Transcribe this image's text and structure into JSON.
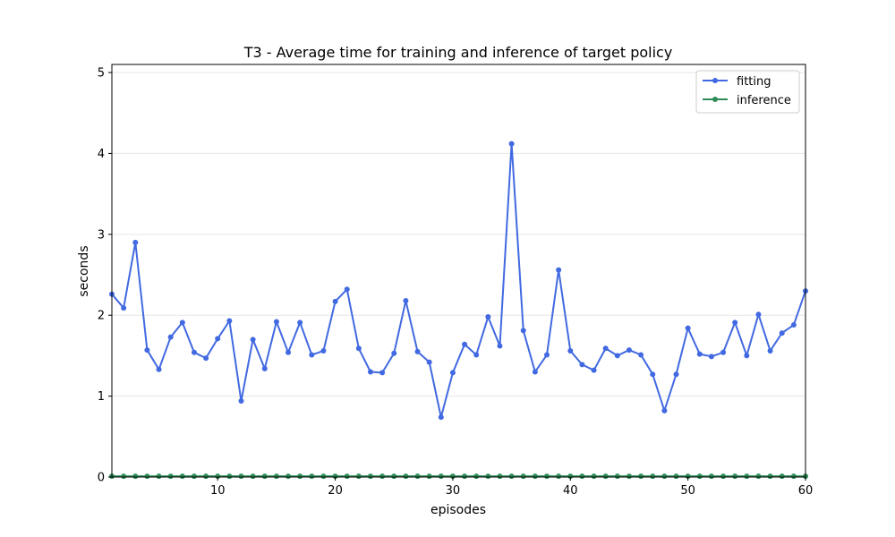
{
  "chart_data": {
    "type": "line",
    "title": "T3 - Average time for training and inference of target policy",
    "xlabel": "episodes",
    "ylabel": "seconds",
    "xlim": [
      1,
      60
    ],
    "ylim": [
      0,
      5.1
    ],
    "xticks": [
      "10",
      "20",
      "30",
      "40",
      "50",
      "60"
    ],
    "yticks": [
      "0",
      "1",
      "2",
      "3",
      "4",
      "5"
    ],
    "grid": "horizontal",
    "legend_position": "top-right",
    "x": [
      1,
      2,
      3,
      4,
      5,
      6,
      7,
      8,
      9,
      10,
      11,
      12,
      13,
      14,
      15,
      16,
      17,
      18,
      19,
      20,
      21,
      22,
      23,
      24,
      25,
      26,
      27,
      28,
      29,
      30,
      31,
      32,
      33,
      34,
      35,
      36,
      37,
      38,
      39,
      40,
      41,
      42,
      43,
      44,
      45,
      46,
      47,
      48,
      49,
      50,
      51,
      52,
      53,
      54,
      55,
      56,
      57,
      58,
      59,
      60
    ],
    "series": [
      {
        "name": "fitting",
        "color": "#4169E1",
        "values": [
          2.26,
          2.09,
          2.9,
          1.57,
          1.33,
          1.73,
          1.91,
          1.54,
          1.47,
          1.71,
          1.93,
          0.94,
          1.7,
          1.34,
          1.92,
          1.54,
          1.91,
          1.51,
          1.56,
          2.17,
          2.32,
          1.59,
          1.3,
          1.29,
          1.53,
          2.18,
          1.55,
          1.42,
          0.74,
          1.29,
          1.64,
          1.51,
          1.98,
          1.62,
          4.12,
          1.81,
          1.3,
          1.51,
          2.56,
          1.56,
          1.39,
          1.32,
          1.59,
          1.5,
          1.57,
          1.51,
          1.27,
          0.82,
          1.27,
          1.84,
          1.52,
          1.49,
          1.54,
          1.91,
          1.5,
          2.01,
          1.56,
          1.78,
          1.88,
          2.3
        ]
      },
      {
        "name": "inference",
        "color": "#2E8B57",
        "values": [
          0.01,
          0.01,
          0.01,
          0.01,
          0.01,
          0.01,
          0.01,
          0.01,
          0.01,
          0.01,
          0.01,
          0.01,
          0.01,
          0.01,
          0.01,
          0.01,
          0.01,
          0.01,
          0.01,
          0.01,
          0.01,
          0.01,
          0.01,
          0.01,
          0.01,
          0.01,
          0.01,
          0.01,
          0.01,
          0.01,
          0.01,
          0.01,
          0.01,
          0.01,
          0.01,
          0.01,
          0.01,
          0.01,
          0.01,
          0.01,
          0.01,
          0.01,
          0.01,
          0.01,
          0.01,
          0.01,
          0.01,
          0.01,
          0.01,
          0.01,
          0.01,
          0.01,
          0.01,
          0.01,
          0.01,
          0.01,
          0.01,
          0.01,
          0.01,
          0.01
        ]
      }
    ]
  }
}
